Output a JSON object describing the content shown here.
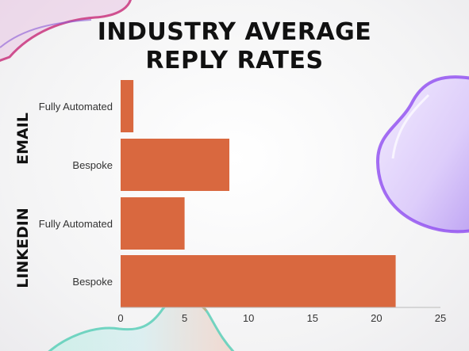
{
  "title_line1": "INDUSTRY AVERAGE",
  "title_line2": "REPLY RATES",
  "chart_data": {
    "type": "bar",
    "orientation": "horizontal",
    "groups": [
      {
        "name": "EMAIL",
        "categories": [
          "Fully Automated",
          "Bespoke"
        ]
      },
      {
        "name": "LINKEDIN",
        "categories": [
          "Fully Automated",
          "Bespoke"
        ]
      }
    ],
    "categories": [
      "Fully Automated",
      "Bespoke",
      "Fully Automated",
      "Bespoke"
    ],
    "values": [
      1,
      8.5,
      5,
      21.5
    ],
    "xlim": [
      0,
      25
    ],
    "xticks": [
      "0",
      "5",
      "10",
      "15",
      "20",
      "25"
    ],
    "grid": false,
    "bar_color": "#d9683f"
  },
  "colors": {
    "purple_blob": "#a885ef",
    "teal_blob": "#5ccfb8",
    "pink_blob": "#c9357e"
  }
}
